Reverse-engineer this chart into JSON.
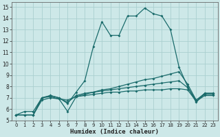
{
  "bg_color": "#cde8e8",
  "grid_color": "#aacfcf",
  "line_color": "#1a6b6b",
  "xlabel": "Humidex (Indice chaleur)",
  "xlim": [
    -0.5,
    23.5
  ],
  "ylim": [
    5,
    15.4
  ],
  "xticks": [
    0,
    1,
    2,
    3,
    4,
    5,
    6,
    7,
    8,
    9,
    10,
    11,
    12,
    13,
    14,
    15,
    16,
    17,
    18,
    19,
    20,
    21,
    22,
    23
  ],
  "yticks": [
    5,
    6,
    7,
    8,
    9,
    10,
    11,
    12,
    13,
    14,
    15
  ],
  "line1_x": [
    0,
    1,
    2,
    3,
    4,
    5,
    6,
    7,
    8,
    9,
    10,
    11,
    12,
    13,
    14,
    15,
    16,
    17,
    18,
    19,
    20,
    21,
    22,
    23
  ],
  "line1_y": [
    5.5,
    5.8,
    5.8,
    7.0,
    7.2,
    7.0,
    6.5,
    7.5,
    8.5,
    11.5,
    13.7,
    12.5,
    12.5,
    14.2,
    14.2,
    14.9,
    14.4,
    14.2,
    13.0,
    9.7,
    8.0,
    6.6,
    7.4,
    7.4
  ],
  "line2_x": [
    0,
    1,
    2,
    3,
    4,
    5,
    6,
    7,
    8,
    9,
    10,
    11,
    12,
    13,
    14,
    15,
    16,
    17,
    18,
    19,
    20,
    21,
    22,
    23
  ],
  "line2_y": [
    5.5,
    5.5,
    5.5,
    6.8,
    7.0,
    6.9,
    6.8,
    7.1,
    7.3,
    7.5,
    7.7,
    7.8,
    8.0,
    8.2,
    8.4,
    8.6,
    8.7,
    8.9,
    9.1,
    9.3,
    8.2,
    6.8,
    7.4,
    7.4
  ],
  "line3_x": [
    0,
    1,
    2,
    3,
    4,
    5,
    6,
    7,
    8,
    9,
    10,
    11,
    12,
    13,
    14,
    15,
    16,
    17,
    18,
    19,
    20,
    21,
    22,
    23
  ],
  "line3_y": [
    5.5,
    5.5,
    5.5,
    7.0,
    7.2,
    7.0,
    6.6,
    7.2,
    7.4,
    7.5,
    7.6,
    7.7,
    7.8,
    7.9,
    8.0,
    8.1,
    8.2,
    8.3,
    8.4,
    8.5,
    7.9,
    6.8,
    7.3,
    7.3
  ],
  "line4_x": [
    0,
    1,
    2,
    3,
    4,
    5,
    6,
    7,
    8,
    9,
    10,
    11,
    12,
    13,
    14,
    15,
    16,
    17,
    18,
    19,
    20,
    21,
    22,
    23
  ],
  "line4_y": [
    5.5,
    5.5,
    5.5,
    7.0,
    7.1,
    6.9,
    5.8,
    7.1,
    7.2,
    7.3,
    7.4,
    7.5,
    7.5,
    7.6,
    7.6,
    7.7,
    7.7,
    7.7,
    7.8,
    7.8,
    7.7,
    6.7,
    7.2,
    7.2
  ]
}
